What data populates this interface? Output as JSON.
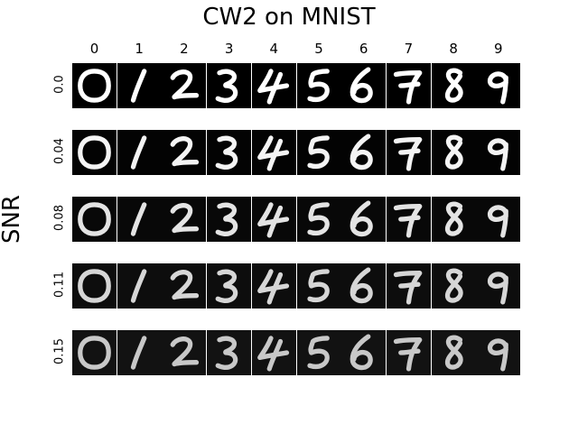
{
  "title": "CW2 on MNIST",
  "ylabel": "SNR",
  "columns": [
    "0",
    "1",
    "2",
    "3",
    "4",
    "5",
    "6",
    "7",
    "8",
    "9"
  ],
  "rows": [
    {
      "snr": "0.0",
      "bg": "#000000",
      "fg": "#ffffff"
    },
    {
      "snr": "0.04",
      "bg": "#030303",
      "fg": "#f4f4f4"
    },
    {
      "snr": "0.08",
      "bg": "#080808",
      "fg": "#e4e4e4"
    },
    {
      "snr": "0.11",
      "bg": "#0d0d0d",
      "fg": "#d6d6d6"
    },
    {
      "snr": "0.15",
      "bg": "#121212",
      "fg": "#c8c8c8"
    }
  ]
}
